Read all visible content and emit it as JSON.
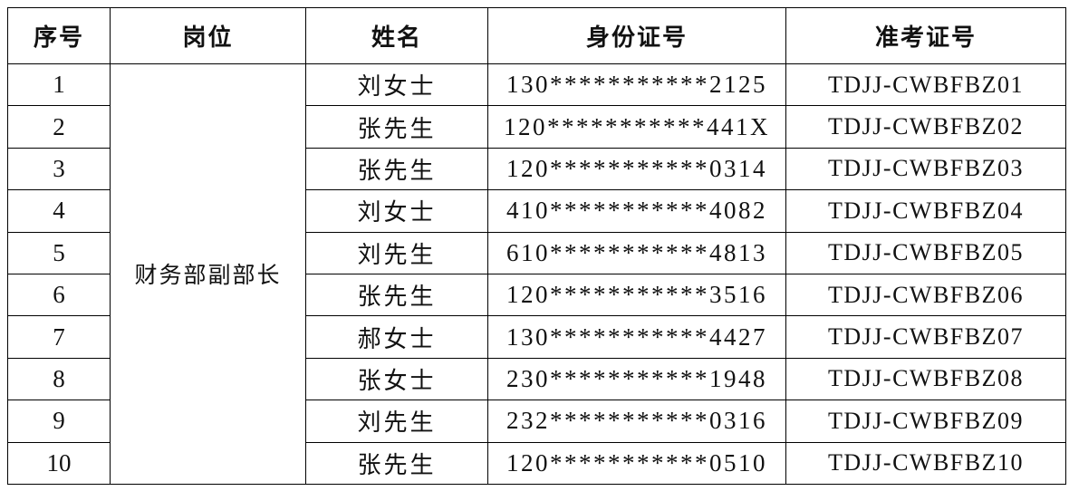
{
  "headers": [
    "序号",
    "岗位",
    "姓名",
    "身份证号",
    "准考证号"
  ],
  "position": "财务部副部长",
  "rows": [
    {
      "seq": "1",
      "name": "刘女士",
      "id": "130***********2125",
      "exam": "TDJJ-CWBFBZ01"
    },
    {
      "seq": "2",
      "name": "张先生",
      "id": "120***********441X",
      "exam": "TDJJ-CWBFBZ02"
    },
    {
      "seq": "3",
      "name": "张先生",
      "id": "120***********0314",
      "exam": "TDJJ-CWBFBZ03"
    },
    {
      "seq": "4",
      "name": "刘女士",
      "id": "410***********4082",
      "exam": "TDJJ-CWBFBZ04"
    },
    {
      "seq": "5",
      "name": "刘先生",
      "id": "610***********4813",
      "exam": "TDJJ-CWBFBZ05"
    },
    {
      "seq": "6",
      "name": "张先生",
      "id": "120***********3516",
      "exam": "TDJJ-CWBFBZ06"
    },
    {
      "seq": "7",
      "name": "郝女士",
      "id": "130***********4427",
      "exam": "TDJJ-CWBFBZ07"
    },
    {
      "seq": "8",
      "name": "张女士",
      "id": "230***********1948",
      "exam": "TDJJ-CWBFBZ08"
    },
    {
      "seq": "9",
      "name": "刘先生",
      "id": "232***********0316",
      "exam": "TDJJ-CWBFBZ09"
    },
    {
      "seq": "10",
      "name": "张先生",
      "id": "120***********0510",
      "exam": "TDJJ-CWBFBZ10"
    }
  ]
}
